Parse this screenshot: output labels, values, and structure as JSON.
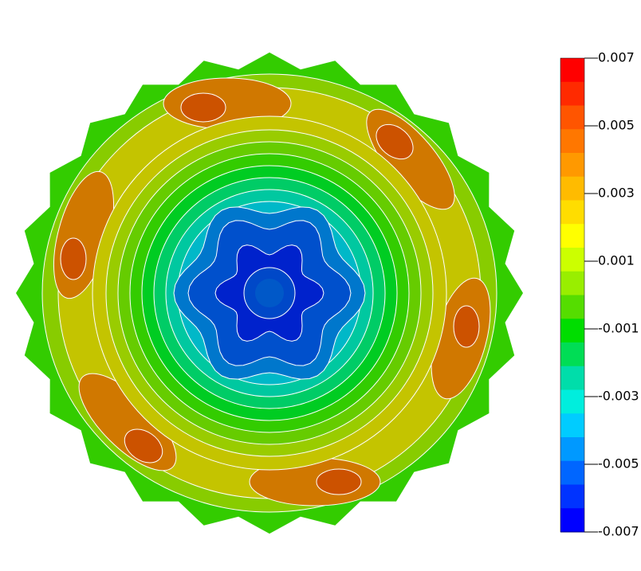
{
  "chart_data": {
    "type": "contour",
    "colorbar": {
      "ylim": [
        -0.007,
        0.007
      ],
      "yticks": [
        0.007,
        0.005,
        0.003,
        0.001,
        -0.001,
        -0.003,
        -0.005,
        -0.007
      ],
      "colors": [
        "#ff0000",
        "#ff2a00",
        "#ff5500",
        "#ff7700",
        "#ff9900",
        "#ffbb00",
        "#ffdd00",
        "#ffff00",
        "#ccff00",
        "#99ee00",
        "#55dd00",
        "#00dd00",
        "#00dd55",
        "#00ddaa",
        "#00eedd",
        "#00ccff",
        "#0099ff",
        "#0066ff",
        "#0033ff",
        "#0000ff"
      ]
    }
  }
}
